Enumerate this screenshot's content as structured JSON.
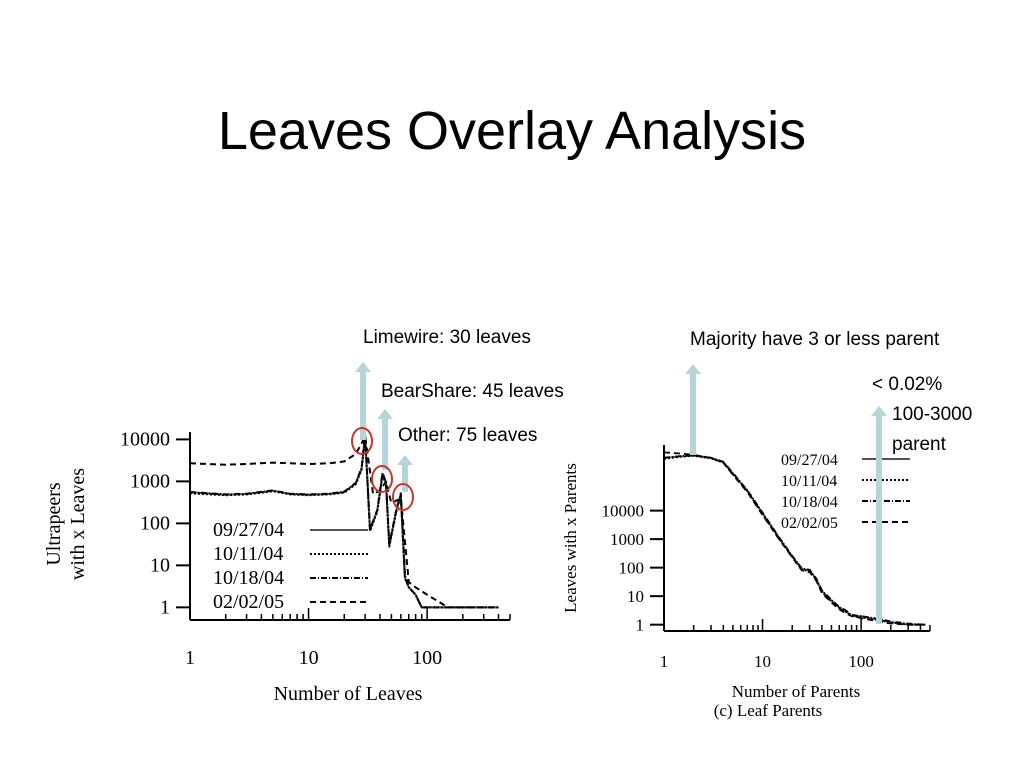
{
  "slide": {
    "title": "Leaves Overlay Analysis",
    "annotations": {
      "limewire": "Limewire: 30 leaves",
      "bearshare": "BearShare: 45 leaves",
      "other": "Other: 75 leaves",
      "majority": "Majority have 3 or less parent",
      "pct": "< 0.02%",
      "range": "100-3000",
      "parent": "parent"
    },
    "colors": {
      "arrow": "#b8d4db",
      "circle": "#c0392b",
      "text": "#000000"
    }
  },
  "chart_data": [
    {
      "type": "line",
      "xlabel": "Number of Leaves",
      "ylabel": "Ultrapeers with x Leaves",
      "ylabel_lines": [
        "Ultrapeers",
        "with x Leaves"
      ],
      "x_scale": "log",
      "y_scale": "log",
      "xlim": [
        1,
        500
      ],
      "ylim": [
        0.5,
        15000
      ],
      "x_ticks": [
        1,
        10,
        100
      ],
      "x_tick_labels": [
        "1",
        "10",
        "100"
      ],
      "y_ticks": [
        1,
        10,
        100,
        1000,
        10000
      ],
      "y_tick_labels": [
        "1",
        "10",
        "100",
        "1000",
        "10000"
      ],
      "legend_position": "bottom-left",
      "series": [
        {
          "name": "09/27/04",
          "style": "solid",
          "color": "#555555",
          "x": [
            1,
            2,
            3,
            5,
            7,
            10,
            15,
            20,
            25,
            28,
            30,
            33,
            38,
            42,
            45,
            48,
            55,
            60,
            65,
            70,
            80,
            90,
            100,
            150,
            200,
            300,
            400
          ],
          "y": [
            550,
            480,
            500,
            600,
            500,
            480,
            500,
            560,
            900,
            2000,
            12000,
            70,
            200,
            1500,
            900,
            30,
            200,
            500,
            5,
            3,
            2,
            1,
            1,
            1,
            1,
            1,
            1
          ]
        },
        {
          "name": "10/11/04",
          "style": "dotted",
          "color": "#000000",
          "x": [
            1,
            2,
            3,
            5,
            7,
            10,
            15,
            20,
            25,
            28,
            30,
            33,
            38,
            42,
            45,
            48,
            55,
            60,
            65,
            70,
            80,
            90,
            100,
            150,
            200,
            300,
            400
          ],
          "y": [
            520,
            470,
            490,
            580,
            490,
            470,
            490,
            540,
            850,
            1900,
            11000,
            65,
            190,
            1400,
            850,
            28,
            190,
            450,
            5,
            3,
            2,
            1,
            1,
            1,
            1,
            1,
            1
          ]
        },
        {
          "name": "10/18/04",
          "style": "dashdot",
          "color": "#000000",
          "x": [
            1,
            2,
            3,
            5,
            7,
            10,
            15,
            20,
            25,
            28,
            30,
            33,
            38,
            42,
            45,
            48,
            55,
            60,
            65,
            70,
            80,
            90,
            100,
            150,
            200,
            300,
            400
          ],
          "y": [
            560,
            490,
            510,
            610,
            510,
            490,
            510,
            570,
            920,
            2100,
            13000,
            72,
            210,
            1600,
            950,
            32,
            210,
            520,
            6,
            3,
            2,
            1,
            1,
            1,
            1,
            1,
            1
          ]
        },
        {
          "name": "02/02/05",
          "style": "dashed",
          "color": "#000000",
          "x": [
            1,
            2,
            3,
            5,
            7,
            10,
            15,
            20,
            25,
            28,
            30,
            35,
            40,
            45,
            50,
            60,
            70,
            80,
            100,
            150,
            200,
            300,
            400
          ],
          "y": [
            2700,
            2500,
            2600,
            2800,
            2700,
            2600,
            2700,
            3000,
            4500,
            8000,
            12000,
            500,
            600,
            1000,
            300,
            400,
            4,
            3,
            2,
            1,
            1,
            1,
            1
          ]
        }
      ]
    },
    {
      "type": "line",
      "caption": "(c)  Leaf Parents",
      "xlabel": "Number of Parents",
      "ylabel": "Leaves with x Parents",
      "x_scale": "log",
      "y_scale": "log",
      "xlim": [
        1,
        500
      ],
      "ylim": [
        0.6,
        2000000
      ],
      "x_ticks": [
        1,
        10,
        100
      ],
      "x_tick_labels": [
        "1",
        "10",
        "100"
      ],
      "y_ticks": [
        1,
        10,
        100,
        1000,
        10000
      ],
      "y_tick_labels": [
        "1",
        "10",
        "100",
        "1000",
        "10000"
      ],
      "legend_position": "top-right",
      "series": [
        {
          "name": "09/27/04",
          "style": "solid",
          "color": "#555555",
          "x": [
            1,
            1.5,
            2,
            3,
            4,
            5,
            7,
            10,
            15,
            20,
            25,
            30,
            35,
            40,
            50,
            60,
            70,
            80,
            100,
            150,
            200,
            300,
            450
          ],
          "y": [
            700000,
            800000,
            850000,
            700000,
            500000,
            200000,
            50000,
            8000,
            1000,
            250,
            90,
            80,
            40,
            15,
            7,
            4,
            3,
            2,
            2,
            1.5,
            1.2,
            1,
            1
          ]
        },
        {
          "name": "10/11/04",
          "style": "dotted",
          "color": "#000000",
          "x": [
            1,
            1.5,
            2,
            3,
            4,
            5,
            7,
            10,
            15,
            20,
            25,
            30,
            35,
            40,
            50,
            60,
            70,
            80,
            100,
            150,
            200,
            300,
            450
          ],
          "y": [
            650000,
            780000,
            830000,
            680000,
            480000,
            190000,
            48000,
            7500,
            950,
            240,
            85,
            75,
            38,
            14,
            6.5,
            3.8,
            2.8,
            2,
            1.8,
            1.4,
            1.2,
            1,
            1
          ]
        },
        {
          "name": "10/18/04",
          "style": "dashdot",
          "color": "#000000",
          "x": [
            1,
            1.5,
            2,
            3,
            4,
            5,
            7,
            10,
            15,
            20,
            25,
            30,
            35,
            40,
            50,
            60,
            70,
            80,
            100,
            150,
            200,
            300,
            450
          ],
          "y": [
            720000,
            820000,
            870000,
            720000,
            520000,
            210000,
            52000,
            8500,
            1050,
            260,
            95,
            85,
            42,
            16,
            7.5,
            4.2,
            3.2,
            2.2,
            2,
            1.6,
            1.3,
            1.1,
            1
          ]
        },
        {
          "name": "02/02/05",
          "style": "dashed",
          "color": "#000000",
          "x": [
            1,
            1.5,
            2,
            3,
            4,
            5,
            7,
            10,
            15,
            20,
            25,
            30,
            35,
            40,
            50,
            60,
            70,
            80,
            100,
            150,
            200,
            300,
            450
          ],
          "y": [
            1100000,
            1000000,
            900000,
            700000,
            480000,
            180000,
            45000,
            7000,
            900,
            230,
            80,
            70,
            35,
            13,
            6,
            3.5,
            2.5,
            2,
            1.7,
            1.3,
            1.1,
            1,
            1
          ]
        }
      ]
    }
  ]
}
